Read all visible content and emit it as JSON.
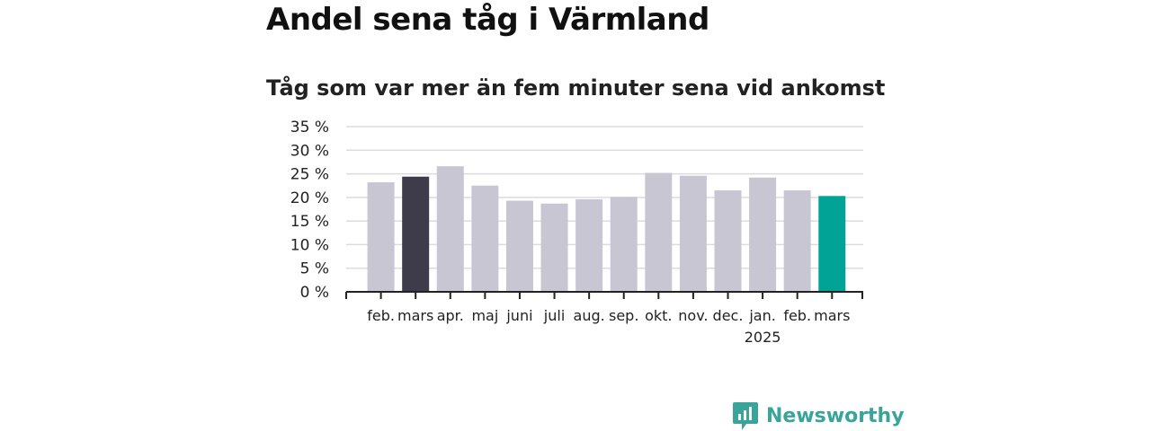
{
  "title": "Andel sena tåg i Värmland",
  "subtitle": "Tåg som var mer än fem minuter sena vid ankomst",
  "brand": {
    "name": "Newsworthy",
    "color": "#3aa39a",
    "icon": "newsworthy-logo-icon"
  },
  "chart_data": {
    "type": "bar",
    "categories": [
      "feb.",
      "mars",
      "apr.",
      "maj",
      "juni",
      "juli",
      "aug.",
      "sep.",
      "okt.",
      "nov.",
      "dec.",
      "jan.",
      "feb.",
      "mars"
    ],
    "category_sublabels": [
      "",
      "",
      "",
      "",
      "",
      "",
      "",
      "",
      "",
      "",
      "",
      "2025",
      "",
      ""
    ],
    "values": [
      23.2,
      24.4,
      26.6,
      22.5,
      19.3,
      18.7,
      19.6,
      20.1,
      25.2,
      24.6,
      21.5,
      24.2,
      21.5,
      20.3
    ],
    "colors": [
      "#c8c6d2",
      "#3e3c4b",
      "#c8c6d2",
      "#c8c6d2",
      "#c8c6d2",
      "#c8c6d2",
      "#c8c6d2",
      "#c8c6d2",
      "#c8c6d2",
      "#c8c6d2",
      "#c8c6d2",
      "#c8c6d2",
      "#c8c6d2",
      "#00a396"
    ],
    "yticks": [
      0,
      5,
      10,
      15,
      20,
      25,
      30,
      35
    ],
    "ytick_labels": [
      "0 %",
      "5 %",
      "10 %",
      "15 %",
      "20 %",
      "25 %",
      "30 %",
      "35 %"
    ],
    "ylim": [
      0,
      35
    ],
    "grid": true,
    "legend": "none"
  }
}
